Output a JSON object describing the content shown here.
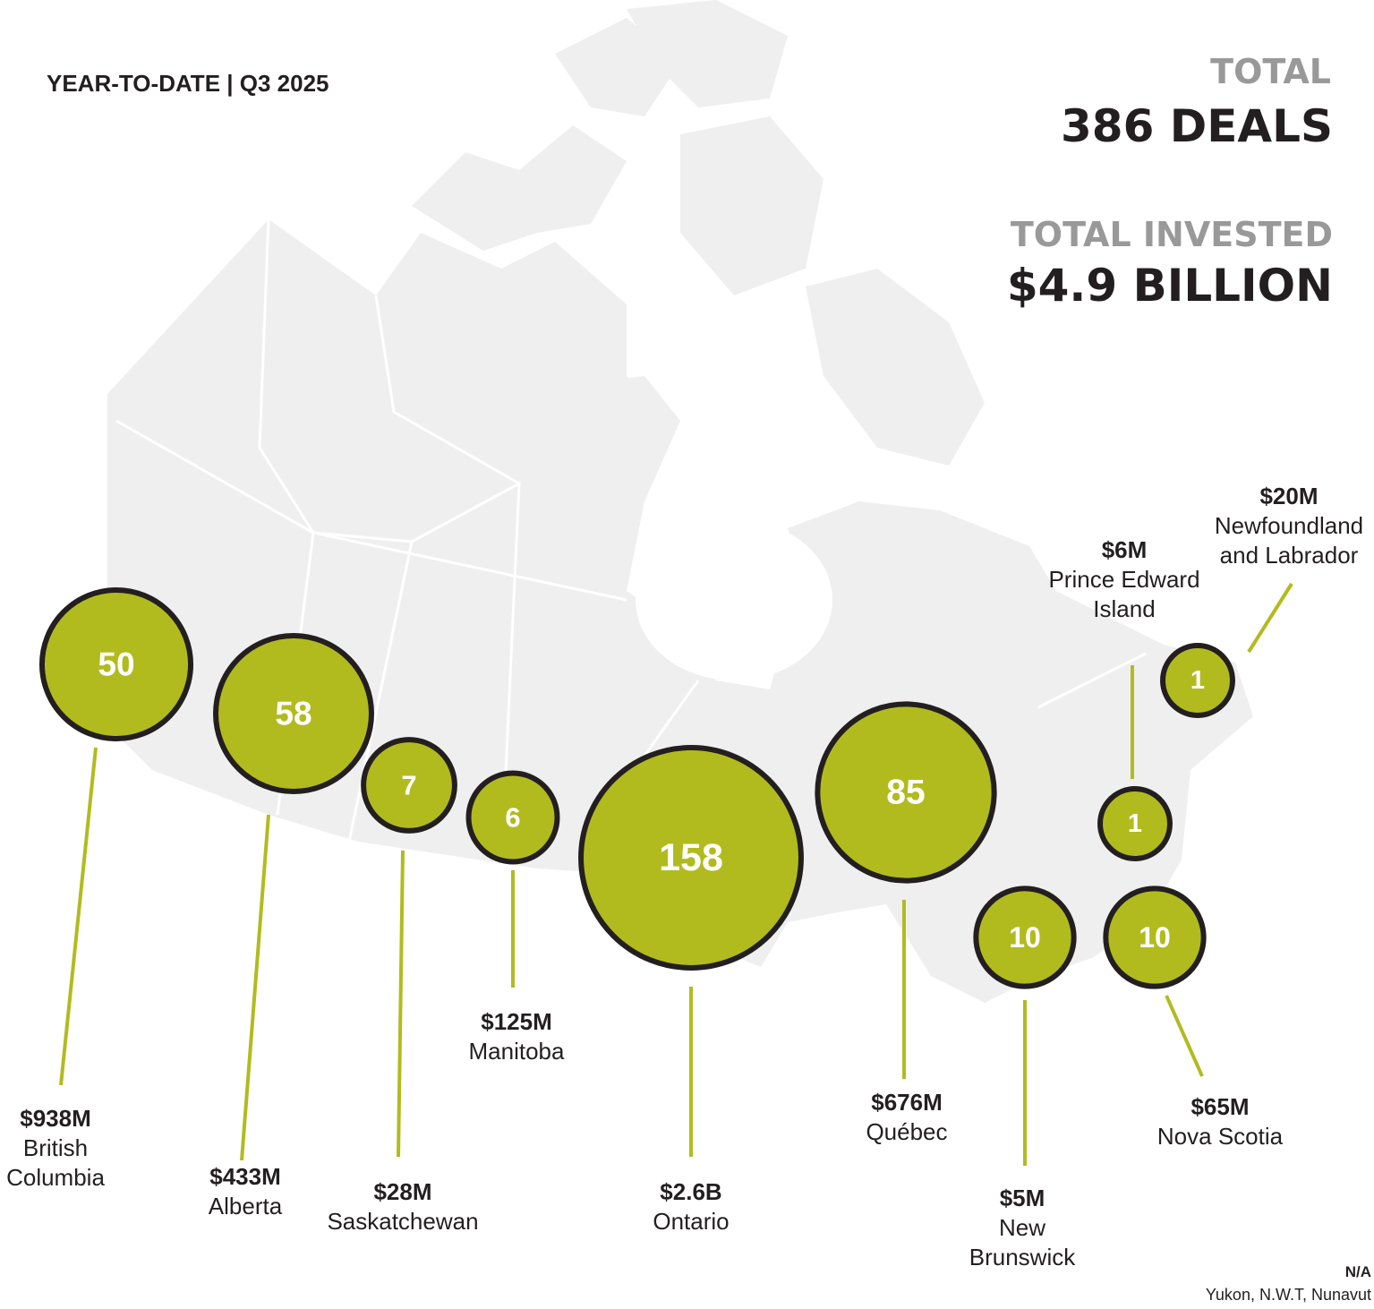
{
  "header": {
    "period": "YEAR-TO-DATE | Q3 2025",
    "total_label": "TOTAL",
    "total_deals": "386 DEALS",
    "invested_label": "TOTAL INVESTED",
    "invested_total": "$4.9 BILLION"
  },
  "regions": [
    {
      "name": "British Columbia",
      "deals": 50,
      "invested": "$938M"
    },
    {
      "name": "Alberta",
      "deals": 58,
      "invested": "$433M"
    },
    {
      "name": "Saskatchewan",
      "deals": 7,
      "invested": "$28M"
    },
    {
      "name": "Manitoba",
      "deals": 6,
      "invested": "$125M"
    },
    {
      "name": "Ontario",
      "deals": 158,
      "invested": "$2.6B"
    },
    {
      "name": "Québec",
      "deals": 85,
      "invested": "$676M"
    },
    {
      "name": "New Brunswick",
      "deals": 10,
      "invested": "$5M"
    },
    {
      "name": "Nova Scotia",
      "deals": 10,
      "invested": "$65M"
    },
    {
      "name": "Prince Edward Island",
      "deals": 1,
      "invested": "$6M"
    },
    {
      "name": "Newfoundland and Labrador",
      "deals": 1,
      "invested": "$20M"
    }
  ],
  "footnote": {
    "value": "N/A",
    "regions": "Yukon, N.W.T, Nunavut"
  }
}
